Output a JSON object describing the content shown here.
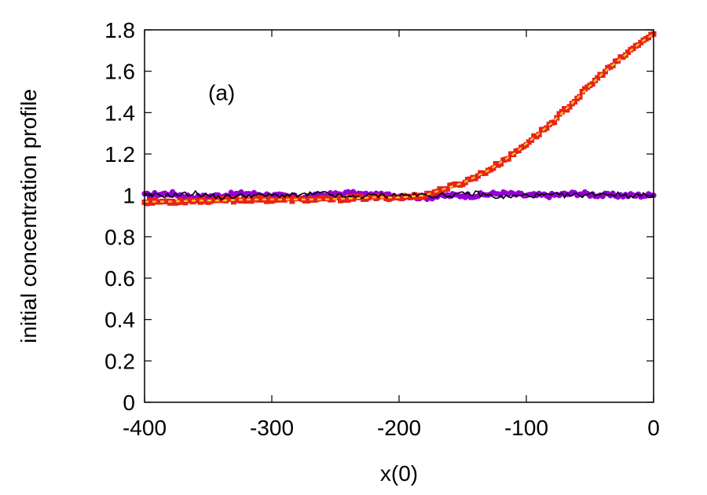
{
  "chart_data": {
    "type": "scatter",
    "xlabel": "x(0)",
    "ylabel": "initial concentration profile",
    "annotation": "(a)",
    "xlim": [
      -400,
      0
    ],
    "ylim": [
      0,
      1.8
    ],
    "x_ticks": [
      -400,
      -300,
      -200,
      -100,
      0
    ],
    "y_ticks": [
      0,
      0.2,
      0.4,
      0.6,
      0.8,
      1,
      1.2,
      1.4,
      1.6,
      1.8
    ],
    "grid": false,
    "legend": "none",
    "series": [
      {
        "style": "points-circle",
        "color": "#9400d3",
        "x": [
          -400,
          -380,
          -360,
          -340,
          -320,
          -300,
          -280,
          -260,
          -240,
          -220,
          -200,
          -180,
          -160,
          -140,
          -120,
          -100,
          -80,
          -60,
          -40,
          -20,
          0
        ],
        "values": [
          1.0,
          1.01,
          0.99,
          1.0,
          1.01,
          1.0,
          0.99,
          1.0,
          1.01,
          1.0,
          1.0,
          0.99,
          1.0,
          1.0,
          1.01,
          1.0,
          1.0,
          1.01,
          1.0,
          1.0,
          1.0
        ]
      },
      {
        "style": "line",
        "color": "#000000",
        "x": [
          -400,
          -380,
          -360,
          -340,
          -320,
          -300,
          -280,
          -260,
          -240,
          -220,
          -200,
          -180,
          -160,
          -140,
          -120,
          -100,
          -80,
          -60,
          -40,
          -20,
          0
        ],
        "values": [
          1.0,
          1.0,
          1.01,
          0.99,
          1.0,
          1.0,
          1.0,
          1.01,
          0.99,
          1.0,
          1.0,
          1.0,
          1.0,
          1.01,
          0.99,
          1.0,
          1.0,
          1.0,
          1.01,
          1.0,
          1.0
        ]
      },
      {
        "style": "points-square",
        "color": "#e8221c",
        "x": [
          -400,
          -380,
          -360,
          -340,
          -320,
          -300,
          -280,
          -260,
          -240,
          -220,
          -200,
          -180,
          -170,
          -160,
          -150,
          -140,
          -130,
          -120,
          -110,
          -100,
          -90,
          -80,
          -70,
          -60,
          -50,
          -40,
          -30,
          -20,
          -10,
          0
        ],
        "values": [
          0.97,
          0.97,
          0.975,
          0.975,
          0.98,
          0.98,
          0.98,
          0.98,
          0.985,
          0.99,
          0.99,
          1.0,
          1.02,
          1.04,
          1.06,
          1.09,
          1.12,
          1.16,
          1.2,
          1.25,
          1.3,
          1.35,
          1.41,
          1.47,
          1.53,
          1.59,
          1.64,
          1.69,
          1.74,
          1.78
        ]
      },
      {
        "style": "line-dashed",
        "color": "#f5c518",
        "x": [
          -400,
          -380,
          -360,
          -340,
          -320,
          -300,
          -280,
          -260,
          -240,
          -220,
          -200,
          -180,
          -170,
          -160,
          -150,
          -140,
          -130,
          -120,
          -110,
          -100,
          -90,
          -80,
          -70,
          -60,
          -50,
          -40,
          -30,
          -20,
          -10,
          0
        ],
        "values": [
          0.97,
          0.97,
          0.975,
          0.975,
          0.98,
          0.98,
          0.98,
          0.98,
          0.985,
          0.99,
          0.99,
          1.0,
          1.02,
          1.04,
          1.06,
          1.09,
          1.12,
          1.16,
          1.2,
          1.25,
          1.3,
          1.35,
          1.41,
          1.47,
          1.53,
          1.59,
          1.64,
          1.69,
          1.74,
          1.78
        ]
      }
    ]
  }
}
